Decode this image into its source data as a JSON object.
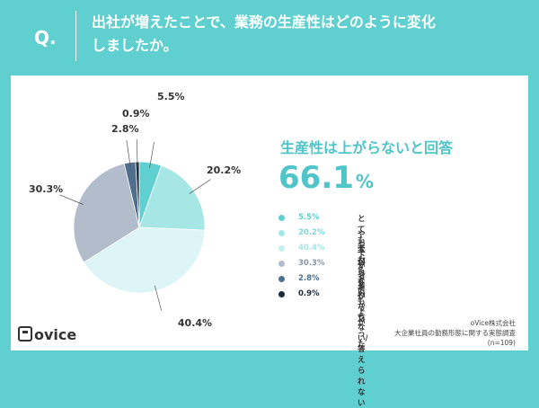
{
  "header": {
    "q_mark": "Q.",
    "question_line1": "出社が増えたことで、業務の生産性はどのように変化",
    "question_line2": "しましたか。"
  },
  "summary": {
    "headline": "生産性は上がらないと回答",
    "value": "66.1",
    "unit": "%"
  },
  "chart_data": {
    "type": "pie",
    "start_angle_deg": 0,
    "direction": "clockwise",
    "slices": [
      {
        "label": "とても下がった",
        "value": 5.5,
        "value_label": "5.5%",
        "color": "#5fcfd0"
      },
      {
        "label": "やや下がった",
        "value": 20.2,
        "value_label": "20.2%",
        "color": "#a6e6e5"
      },
      {
        "label": "変わらない",
        "value": 40.4,
        "value_label": "40.4%",
        "color": "#ddf5f6"
      },
      {
        "label": "やや上がった",
        "value": 30.3,
        "value_label": "30.3%",
        "color": "#b3bccb"
      },
      {
        "label": "とても上がった",
        "value": 2.8,
        "value_label": "2.8%",
        "color": "#4f6f8c"
      },
      {
        "label": "わからない/答えられない",
        "value": 0.9,
        "value_label": "0.9%",
        "color": "#1b2a3c"
      }
    ]
  },
  "legend_pct_colors": [
    "#5fcfd0",
    "#7fd9d9",
    "#a6e6e5",
    "#8a96a8",
    "#4f6f8c",
    "#1b2a3c"
  ],
  "logo": {
    "text": "ovice"
  },
  "source": {
    "line1": "oVice株式会社",
    "line2": "大企業社員の勤務形態に関する実態調査",
    "line3": "(n=109)"
  }
}
